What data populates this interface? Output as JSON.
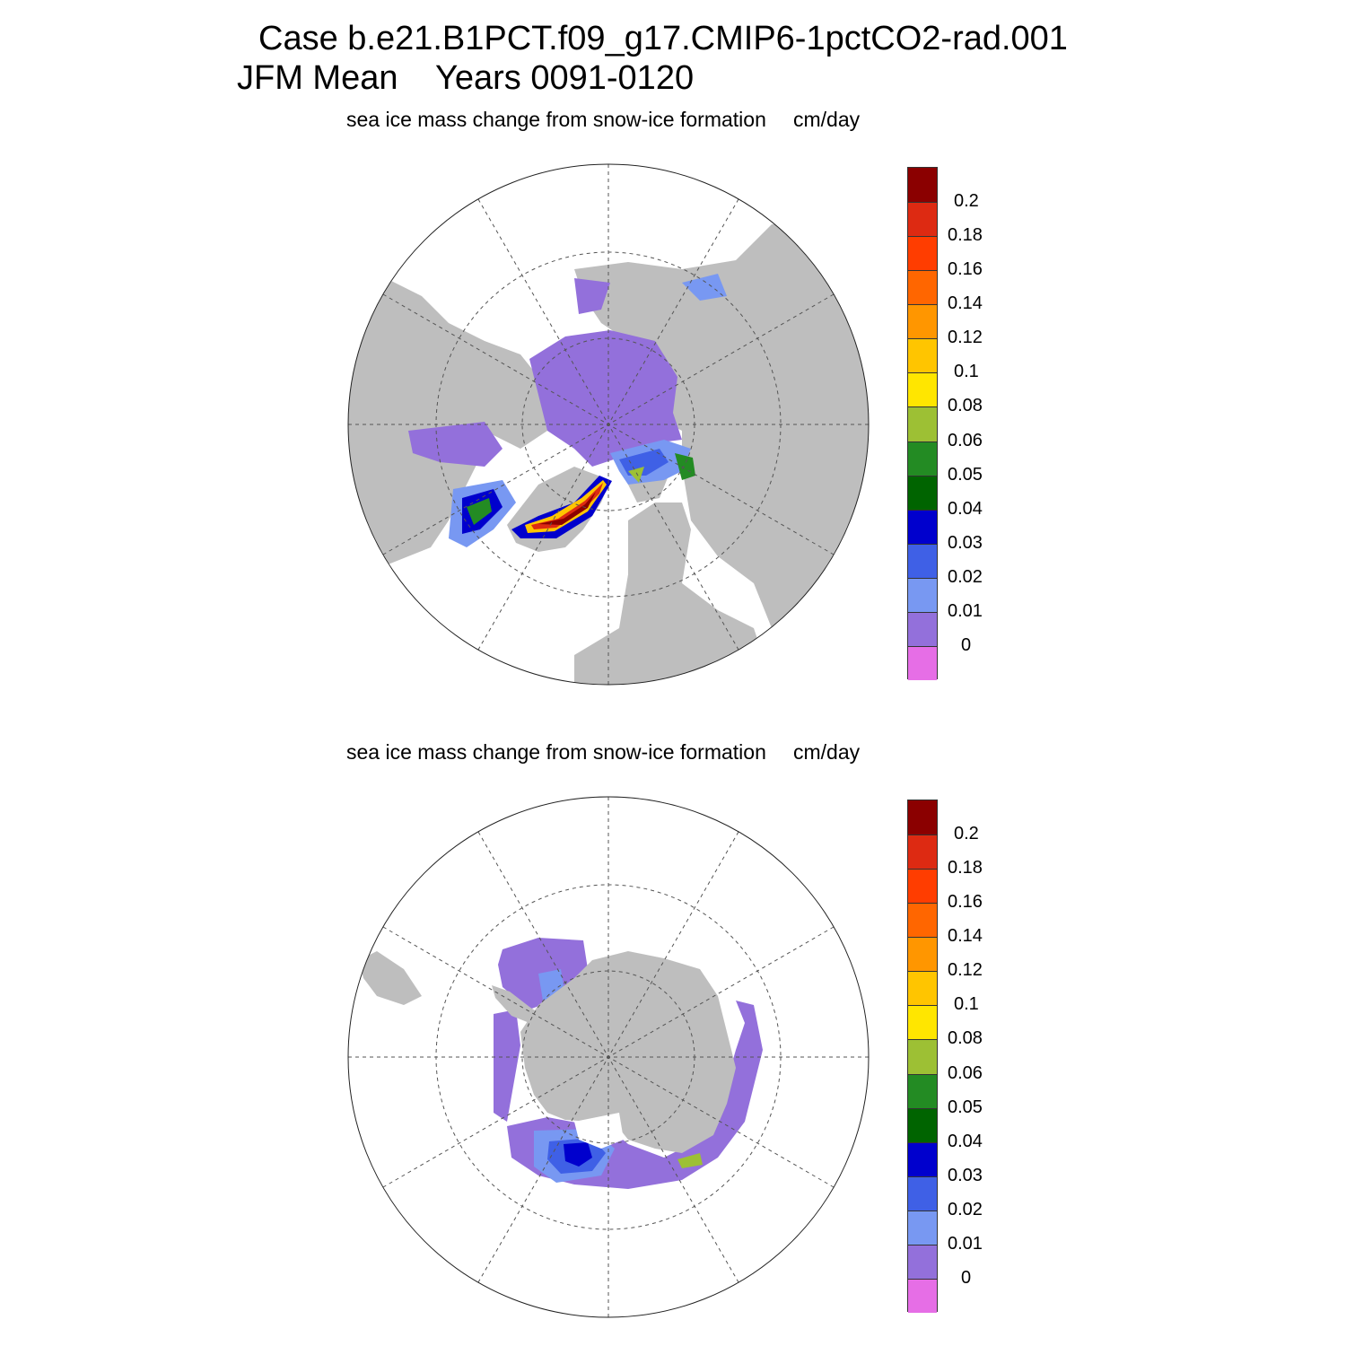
{
  "title_line1": "Case b.e21.B1PCT.f09_g17.CMIP6-1pctCO2-rad.001",
  "title_line2": "JFM Mean    Years 0091-0120",
  "panels": [
    {
      "id": "north",
      "hemisphere": "Arctic",
      "subtitle": "sea ice mass change from snow-ice formation",
      "units": "cm/day"
    },
    {
      "id": "south",
      "hemisphere": "Antarctic",
      "subtitle": "sea ice mass change from snow-ice formation",
      "units": "cm/day"
    }
  ],
  "colorbar": {
    "labels": [
      "0.2",
      "0.18",
      "0.16",
      "0.14",
      "0.12",
      "0.1",
      "0.08",
      "0.06",
      "0.05",
      "0.04",
      "0.03",
      "0.02",
      "0.01",
      "0"
    ],
    "colors_top_to_bottom": [
      "#8b0000",
      "#dd2a12",
      "#ff3d00",
      "#ff6600",
      "#ff9600",
      "#ffc500",
      "#ffe600",
      "#9dc034",
      "#238b23",
      "#006400",
      "#0000cd",
      "#3f60e6",
      "#7898f2",
      "#9370db",
      "#e66ee6"
    ]
  },
  "colors": {
    "land": "#bebebe",
    "ocean": "#ffffff",
    "grid": "#555555"
  }
}
